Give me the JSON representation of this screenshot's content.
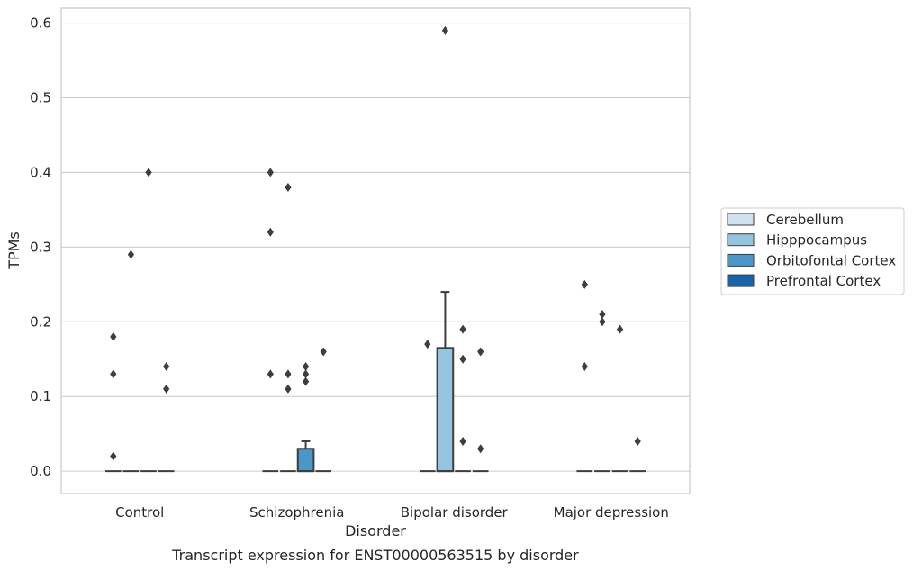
{
  "chart_data": {
    "type": "box",
    "title": "Transcript expression for ENST00000563515 by disorder",
    "xlabel": "Disorder",
    "ylabel": "TPMs",
    "categories": [
      "Control",
      "Schizophrenia",
      "Bipolar disorder",
      "Major depression"
    ],
    "ylim": [
      -0.03,
      0.62
    ],
    "yticks": [
      0.0,
      0.1,
      0.2,
      0.3,
      0.4,
      0.5,
      0.6
    ],
    "ytick_labels": [
      "0.0",
      "0.1",
      "0.2",
      "0.3",
      "0.4",
      "0.5",
      "0.6"
    ],
    "grid": "horizontal",
    "legend_position": "right",
    "series": [
      {
        "name": "Cerebellum",
        "color": "#d0e1f2",
        "boxes": [
          {
            "q1": 0,
            "median": 0,
            "q3": 0,
            "whisker_low": 0,
            "whisker_high": 0,
            "outliers": [
              0.02,
              0.13,
              0.18
            ]
          },
          {
            "q1": 0,
            "median": 0,
            "q3": 0,
            "whisker_low": 0,
            "whisker_high": 0,
            "outliers": [
              0.13,
              0.32,
              0.4
            ]
          },
          {
            "q1": 0,
            "median": 0,
            "q3": 0,
            "whisker_low": 0,
            "whisker_high": 0,
            "outliers": [
              0.17
            ]
          },
          {
            "q1": 0,
            "median": 0,
            "q3": 0,
            "whisker_low": 0,
            "whisker_high": 0,
            "outliers": [
              0.14,
              0.25
            ]
          }
        ]
      },
      {
        "name": "Hipppocampus",
        "color": "#94c4df",
        "boxes": [
          {
            "q1": 0,
            "median": 0,
            "q3": 0,
            "whisker_low": 0,
            "whisker_high": 0,
            "outliers": [
              0.29
            ]
          },
          {
            "q1": 0,
            "median": 0,
            "q3": 0,
            "whisker_low": 0,
            "whisker_high": 0,
            "outliers": [
              0.11,
              0.13,
              0.38
            ]
          },
          {
            "q1": 0,
            "median": 0,
            "q3": 0.165,
            "whisker_low": 0,
            "whisker_high": 0.24,
            "outliers": [
              0.59
            ]
          },
          {
            "q1": 0,
            "median": 0,
            "q3": 0,
            "whisker_low": 0,
            "whisker_high": 0,
            "outliers": [
              0.2,
              0.21
            ]
          }
        ]
      },
      {
        "name": "Orbitofontal Cortex",
        "color": "#4a98c9",
        "boxes": [
          {
            "q1": 0,
            "median": 0,
            "q3": 0,
            "whisker_low": 0,
            "whisker_high": 0,
            "outliers": [
              0.4
            ]
          },
          {
            "q1": 0,
            "median": 0,
            "q3": 0.03,
            "whisker_low": 0,
            "whisker_high": 0.04,
            "outliers": [
              0.12,
              0.13,
              0.14
            ]
          },
          {
            "q1": 0,
            "median": 0,
            "q3": 0,
            "whisker_low": 0,
            "whisker_high": 0,
            "outliers": [
              0.04,
              0.15,
              0.19
            ]
          },
          {
            "q1": 0,
            "median": 0,
            "q3": 0,
            "whisker_low": 0,
            "whisker_high": 0,
            "outliers": [
              0.19
            ]
          }
        ]
      },
      {
        "name": "Prefrontal Cortex",
        "color": "#1764ab",
        "boxes": [
          {
            "q1": 0,
            "median": 0,
            "q3": 0,
            "whisker_low": 0,
            "whisker_high": 0,
            "outliers": [
              0.11,
              0.14
            ]
          },
          {
            "q1": 0,
            "median": 0,
            "q3": 0,
            "whisker_low": 0,
            "whisker_high": 0,
            "outliers": [
              0.16
            ]
          },
          {
            "q1": 0,
            "median": 0,
            "q3": 0,
            "whisker_low": 0,
            "whisker_high": 0,
            "outliers": [
              0.03,
              0.16
            ]
          },
          {
            "q1": 0,
            "median": 0,
            "q3": 0,
            "whisker_low": 0,
            "whisker_high": 0,
            "outliers": [
              0.04
            ]
          }
        ]
      }
    ]
  }
}
